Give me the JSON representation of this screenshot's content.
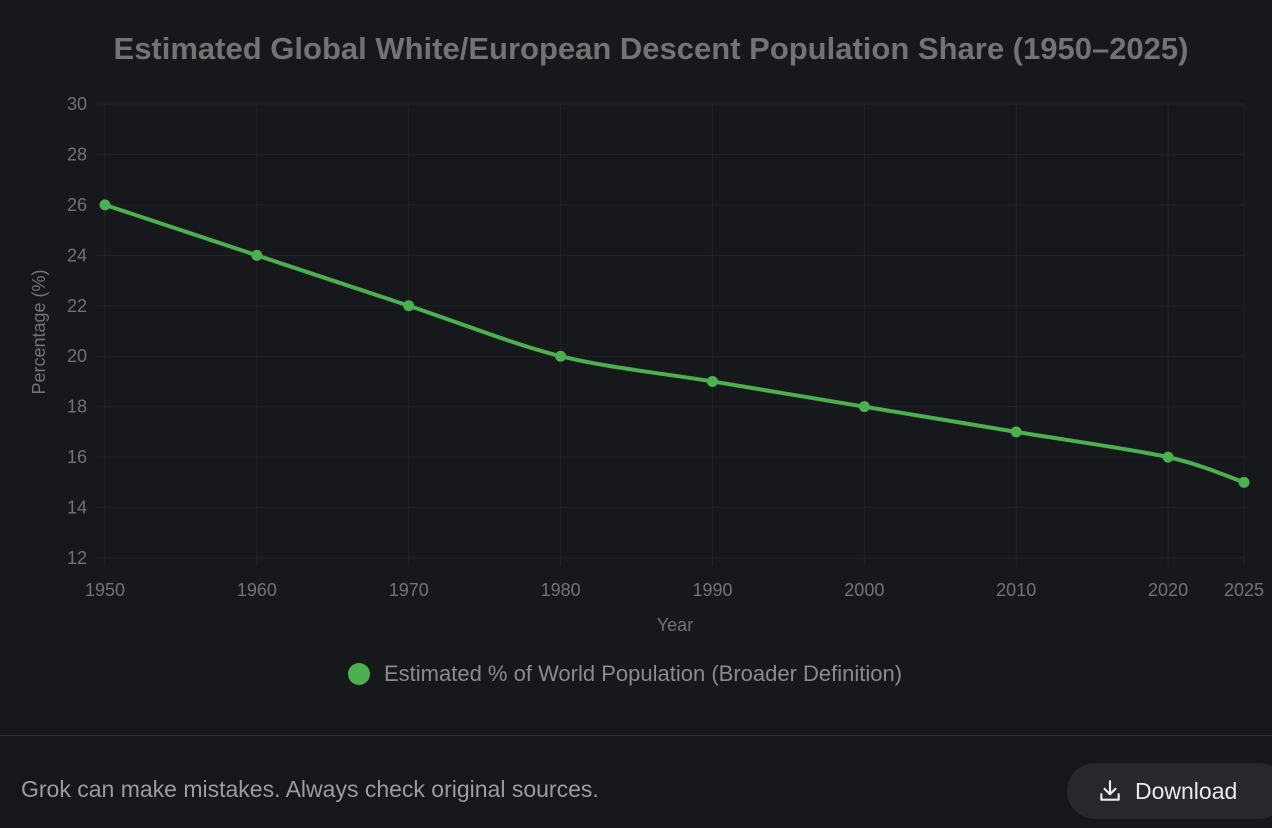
{
  "chart_data": {
    "type": "line",
    "title": "Estimated Global White/European Descent Population Share (1950–2025)",
    "categories": [
      "1950",
      "1960",
      "1970",
      "1980",
      "1990",
      "2000",
      "2010",
      "2020",
      "2025"
    ],
    "series": [
      {
        "name": "Estimated % of World Population (Broader Definition)",
        "values": [
          26,
          24,
          22,
          20,
          19,
          18,
          17,
          16,
          15
        ],
        "color": "#4caf50"
      }
    ],
    "xlabel": "Year",
    "ylabel": "Percentage (%)",
    "ylim": [
      12,
      30
    ],
    "yticks": [
      12,
      14,
      16,
      18,
      20,
      22,
      24,
      26,
      28,
      30
    ],
    "grid": true,
    "legend": "bottom"
  },
  "footer": {
    "disclaimer": "Grok can make mistakes. Always check original sources.",
    "download_label": "Download"
  },
  "colors": {
    "line": "#4caf50",
    "grid": "#222327",
    "text": "#727375"
  }
}
